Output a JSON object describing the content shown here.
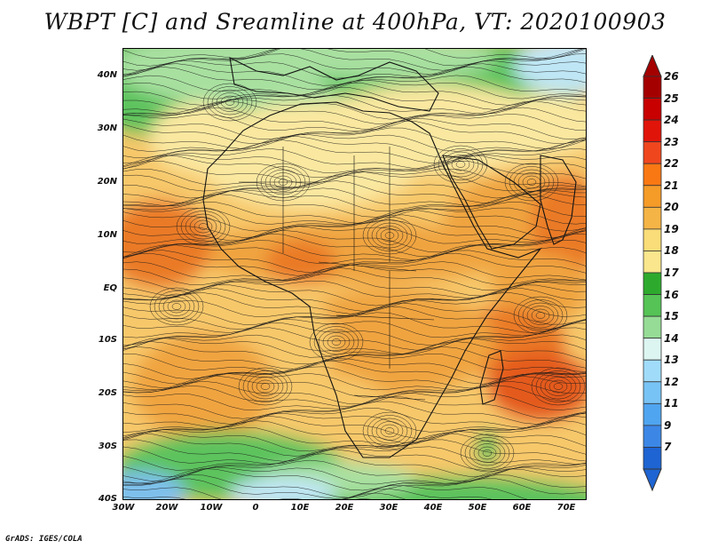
{
  "title": "WBPT [C] and Sreamline at 400hPa, VT: 2020100903",
  "credit": "GrADS: IGES/COLA",
  "lat_ticks": [
    "40N",
    "30N",
    "20N",
    "10N",
    "EQ",
    "10S",
    "20S",
    "30S",
    "40S"
  ],
  "lon_ticks": [
    "30W",
    "20W",
    "10W",
    "0",
    "10E",
    "20E",
    "30E",
    "40E",
    "50E",
    "60E",
    "70E"
  ],
  "colorbar": {
    "labels": [
      "26",
      "25",
      "24",
      "23",
      "22",
      "21",
      "20",
      "19",
      "18",
      "17",
      "16",
      "15",
      "14",
      "13",
      "12",
      "11",
      "9",
      "7"
    ],
    "colors": [
      "#a50000",
      "#c80000",
      "#e1140a",
      "#f0461e",
      "#fa7814",
      "#f59b28",
      "#f5b446",
      "#fadc78",
      "#fae68c",
      "#2daa2d",
      "#55c355",
      "#96dc96",
      "#dcf5f0",
      "#a0dcfa",
      "#78c3f5",
      "#50a5f0",
      "#3c87e6",
      "#1e64d2"
    ]
  },
  "map_colors": {
    "green": "#5dc35d",
    "light_green": "#a8e0a0",
    "cream": "#fae8a0",
    "light_orange": "#f7c86a",
    "orange": "#f0a440",
    "dark_orange": "#ea7a28",
    "red_orange": "#e45a1e",
    "pale_blue": "#bfe6f5",
    "blue": "#7ec0ec"
  }
}
